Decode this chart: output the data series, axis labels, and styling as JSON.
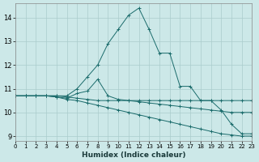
{
  "xlabel": "Humidex (Indice chaleur)",
  "ylabel": "",
  "background_color": "#cce8e8",
  "line_color": "#1a6b6b",
  "xlim": [
    0,
    23
  ],
  "ylim": [
    8.8,
    14.6
  ],
  "xticks": [
    0,
    1,
    2,
    3,
    4,
    5,
    6,
    7,
    8,
    9,
    10,
    11,
    12,
    13,
    14,
    15,
    16,
    17,
    18,
    19,
    20,
    21,
    22,
    23
  ],
  "yticks": [
    9,
    10,
    11,
    12,
    13,
    14
  ],
  "grid_color": "#aacccc",
  "lines": [
    {
      "x": [
        0,
        1,
        2,
        3,
        4,
        5,
        6,
        7,
        8,
        9,
        10,
        11,
        12,
        13,
        14,
        15,
        16,
        17,
        18,
        19,
        20,
        21,
        22,
        23
      ],
      "y": [
        10.7,
        10.7,
        10.7,
        10.7,
        10.7,
        10.7,
        11.0,
        11.5,
        12.0,
        12.9,
        13.5,
        14.1,
        14.4,
        13.5,
        12.5,
        12.5,
        11.1,
        11.1,
        10.5,
        10.5,
        10.1,
        9.5,
        9.1,
        9.1
      ]
    },
    {
      "x": [
        0,
        1,
        2,
        3,
        4,
        5,
        6,
        7,
        8,
        9,
        10,
        11,
        12,
        13,
        14,
        15,
        16,
        17,
        18,
        19,
        20,
        21,
        22,
        23
      ],
      "y": [
        10.7,
        10.7,
        10.7,
        10.7,
        10.7,
        10.65,
        10.6,
        10.55,
        10.5,
        10.5,
        10.5,
        10.5,
        10.5,
        10.5,
        10.5,
        10.5,
        10.5,
        10.5,
        10.5,
        10.5,
        10.5,
        10.5,
        10.5,
        10.5
      ]
    },
    {
      "x": [
        0,
        1,
        2,
        3,
        4,
        5,
        6,
        7,
        8,
        9,
        10,
        11,
        12,
        13,
        14,
        15,
        16,
        17,
        18,
        19,
        20,
        21,
        22,
        23
      ],
      "y": [
        10.7,
        10.7,
        10.7,
        10.7,
        10.65,
        10.6,
        10.8,
        10.9,
        11.4,
        10.7,
        10.55,
        10.5,
        10.45,
        10.4,
        10.35,
        10.3,
        10.25,
        10.2,
        10.15,
        10.1,
        10.05,
        10.0,
        10.0,
        10.0
      ]
    },
    {
      "x": [
        0,
        1,
        2,
        3,
        4,
        5,
        6,
        7,
        8,
        9,
        10,
        11,
        12,
        13,
        14,
        15,
        16,
        17,
        18,
        19,
        20,
        21,
        22,
        23
      ],
      "y": [
        10.7,
        10.7,
        10.7,
        10.7,
        10.65,
        10.55,
        10.5,
        10.4,
        10.3,
        10.2,
        10.1,
        10.0,
        9.9,
        9.8,
        9.7,
        9.6,
        9.5,
        9.4,
        9.3,
        9.2,
        9.1,
        9.05,
        9.0,
        9.0
      ]
    }
  ]
}
